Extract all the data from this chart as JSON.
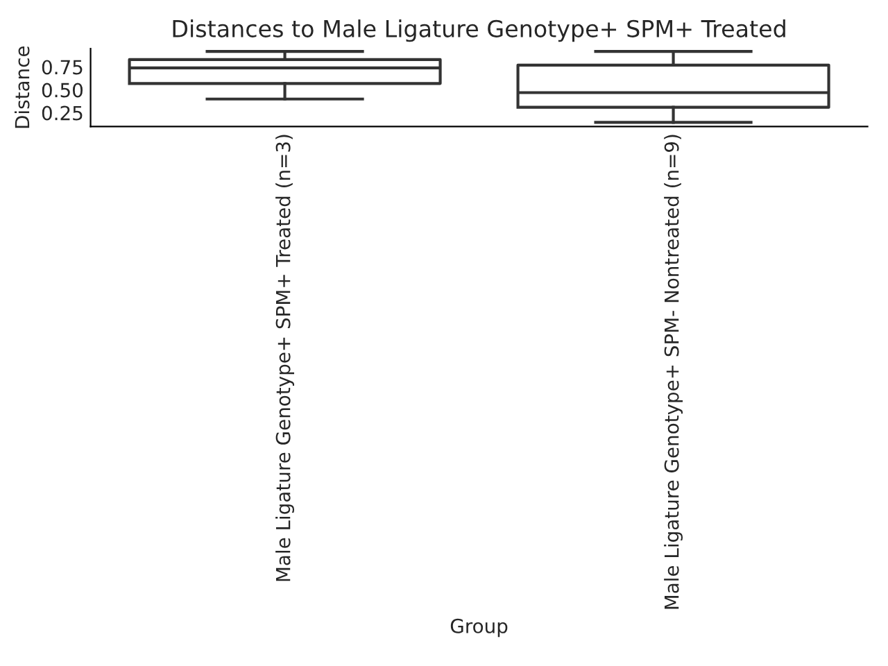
{
  "chart_data": {
    "type": "box",
    "title": "Distances to Male Ligature Genotype+ SPM+ Treated",
    "xlabel": "Group",
    "ylabel": "Distance",
    "categories": [
      "Male Ligature Genotype+ SPM+ Treated (n=3)",
      "Male Ligature Genotype+ SPM- Nontreated (n=9)"
    ],
    "boxes": [
      {
        "low": 0.4,
        "q1": 0.57,
        "median": 0.74,
        "q3": 0.83,
        "high": 0.92
      },
      {
        "low": 0.145,
        "q1": 0.31,
        "median": 0.47,
        "q3": 0.77,
        "high": 0.92
      }
    ],
    "ylim": [
      0.1,
      0.95
    ],
    "yticks": [
      {
        "value": 0.25,
        "label": "0.25"
      },
      {
        "value": 0.5,
        "label": "0.50"
      },
      {
        "value": 0.75,
        "label": "0.75"
      }
    ],
    "grid": false,
    "legend": false
  }
}
